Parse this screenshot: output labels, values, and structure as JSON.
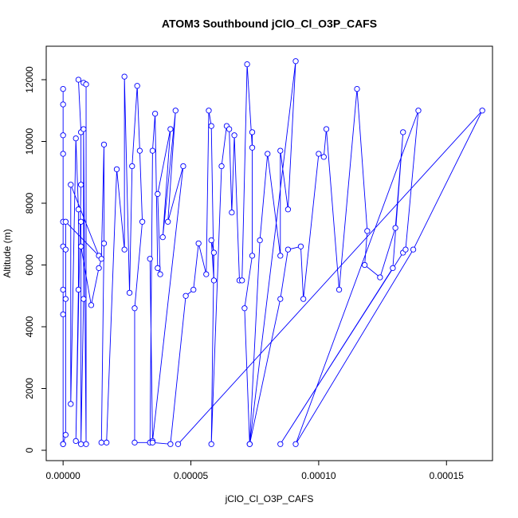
{
  "chart_data": {
    "type": "line",
    "title": "ATOM3 Southbound jClO_Cl_O3P_CAFS",
    "x_label": "jClO_Cl_O3P_CAFS",
    "y_label": "Altitude (m)",
    "color": "#0000ff",
    "xlim": [
      -6.6e-06,
      0.000168
    ],
    "ylim": [
      -335,
      13084
    ],
    "xticks": [
      {
        "value": 0,
        "label": "0.00000"
      },
      5e-05,
      {
        "value": 0.0001,
        "label": "0.00010"
      },
      {
        "value": 0.00015,
        "label": "0.00015"
      }
    ],
    "yticks": [
      0,
      2000,
      4000,
      6000,
      8000,
      10000,
      12000
    ],
    "x": [
      0,
      0,
      0,
      0,
      0,
      0,
      0,
      0,
      0,
      0,
      1e-06,
      1e-06,
      1e-06,
      1e-06,
      1.4e-05,
      3e-06,
      3e-06,
      5e-06,
      6e-06,
      6e-06,
      5e-06,
      7e-06,
      7e-06,
      6e-06,
      8e-06,
      9e-06,
      9e-06,
      8e-06,
      8e-06,
      7e-06,
      7e-06,
      7e-06,
      1.1e-05,
      1.4e-05,
      1.5e-05,
      1.6e-05,
      1.6e-05,
      1.5e-05,
      1.7e-05,
      2.1e-05,
      2.4e-05,
      2.4e-05,
      2.6e-05,
      2.7e-05,
      2.9e-05,
      3e-05,
      3.1e-05,
      2.8e-05,
      2.8e-05,
      3.4e-05,
      3.5e-05,
      3.6e-05,
      3.7e-05,
      3.8e-05,
      3.7e-05,
      4.2e-05,
      3.9e-05,
      4.4e-05,
      4.1e-05,
      4.7e-05,
      3.5e-05,
      3.4e-05,
      3.5e-05,
      4.2e-05,
      4.8e-05,
      5.1e-05,
      5.3e-05,
      5.6e-05,
      5.7e-05,
      5.8e-05,
      5.9e-05,
      5.8e-05,
      5.9e-05,
      5.8e-05,
      6.2e-05,
      6.4e-05,
      6.5e-05,
      6.6e-05,
      6.7e-05,
      6.9e-05,
      7e-05,
      7.2e-05,
      7.4e-05,
      7.4e-05,
      7.4e-05,
      7.1e-05,
      7.3e-05,
      7.7e-05,
      8e-05,
      8.5e-05,
      8.5e-05,
      8.8e-05,
      9.1e-05,
      7.3e-05,
      8.5e-05,
      8.8e-05,
      9.3e-05,
      9.4e-05,
      0.0001,
      0.000102,
      0.000103,
      0.000108,
      0.000115,
      0.000119,
      0.000118,
      0.000124,
      0.00013,
      0.000133,
      0.000129,
      8.5e-05,
      0.000133,
      0.000134,
      0.000139,
      9.1e-05,
      0.000137,
      0.000164,
      4.5e-05
    ],
    "values": [
      200,
      4400,
      5200,
      6600,
      7400,
      9600,
      10200,
      11200,
      11700,
      200,
      500,
      4900,
      6500,
      7400,
      6300,
      8600,
      1500,
      10100,
      7800,
      5200,
      300,
      8600,
      10300,
      12000,
      11900,
      11850,
      200,
      10400,
      4900,
      200,
      7400,
      6600,
      4700,
      5900,
      6200,
      9900,
      6700,
      250,
      250,
      9100,
      6500,
      12100,
      5100,
      9200,
      11800,
      9700,
      7400,
      4600,
      250,
      250,
      9700,
      10900,
      5900,
      5700,
      8300,
      10400,
      6900,
      11000,
      7400,
      9200,
      300,
      6200,
      250,
      200,
      5000,
      5200,
      6700,
      5700,
      11000,
      10500,
      5500,
      6800,
      6400,
      200,
      9200,
      10500,
      10400,
      7700,
      10200,
      5500,
      5500,
      12500,
      9800,
      10300,
      6300,
      4600,
      200,
      6800,
      9600,
      6300,
      9700,
      7800,
      12600,
      200,
      4900,
      6500,
      6600,
      4900,
      9600,
      9500,
      10400,
      5200,
      11700,
      7100,
      6000,
      5600,
      7200,
      10300,
      5900,
      200,
      6400,
      6500,
      11000,
      200,
      6500,
      11000,
      200
    ]
  }
}
